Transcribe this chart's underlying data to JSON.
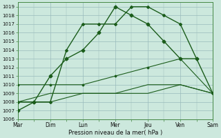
{
  "background_color": "#cce8dd",
  "grid_color": "#99bbbb",
  "line_color": "#1a5c1a",
  "xlabel": "Pression niveau de la mer( hPa )",
  "xtick_labels": [
    "Mar",
    "Dim",
    "Lun",
    "Mer",
    "Jeu",
    "Ven",
    "Sam"
  ],
  "ylim": [
    1006,
    1019.5
  ],
  "xlim": [
    0,
    6
  ],
  "ytick_min": 1006,
  "ytick_max": 1019,
  "lines": [
    {
      "x": [
        0,
        0.5,
        1,
        1.5,
        2,
        2.5,
        3,
        3.5,
        4,
        4.5,
        5,
        5.5
      ],
      "y": [
        1007,
        1008,
        1011,
        1013,
        1014,
        1016,
        1019,
        1018,
        1017,
        1015,
        1013,
        1013
      ],
      "marker": "D",
      "markersize": 2.5,
      "lw": 1.0
    },
    {
      "x": [
        0,
        0.5,
        1,
        1.5,
        2,
        2.5,
        3,
        3.5,
        4,
        4.5,
        5,
        5.5,
        6
      ],
      "y": [
        1008,
        1008,
        1008,
        1014,
        1017,
        1017,
        1017,
        1019,
        1019,
        1018,
        1017,
        1013,
        1009
      ],
      "marker": "D",
      "markersize": 2.0,
      "lw": 1.0
    },
    {
      "x": [
        0,
        1,
        2,
        3,
        4,
        5,
        6
      ],
      "y": [
        1010,
        1010,
        1010,
        1011,
        1012,
        1013,
        1009
      ],
      "marker": "D",
      "markersize": 1.5,
      "lw": 0.8
    },
    {
      "x": [
        0,
        1,
        2,
        3,
        4,
        5,
        6
      ],
      "y": [
        1008,
        1009,
        1009,
        1009,
        1010,
        1010,
        1009
      ],
      "marker": null,
      "markersize": 0,
      "lw": 0.8
    },
    {
      "x": [
        0,
        1,
        2,
        3,
        4,
        5,
        6
      ],
      "y": [
        1008,
        1008,
        1009,
        1009,
        1009,
        1010,
        1009
      ],
      "marker": null,
      "markersize": 0,
      "lw": 0.8
    }
  ]
}
